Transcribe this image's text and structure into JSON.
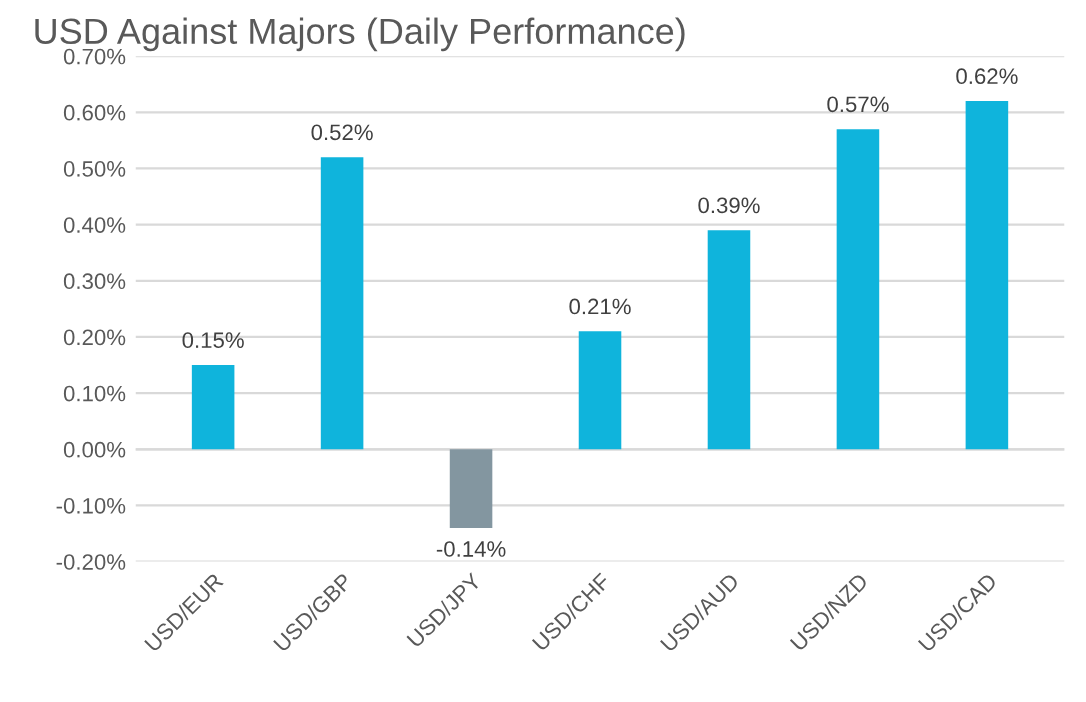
{
  "chart_data": {
    "type": "bar",
    "title": "USD Against Majors (Daily Performance)",
    "categories": [
      "USD/EUR",
      "USD/GBP",
      "USD/JPY",
      "USD/CHF",
      "USD/AUD",
      "USD/NZD",
      "USD/CAD"
    ],
    "values": [
      0.15,
      0.52,
      -0.14,
      0.21,
      0.39,
      0.57,
      0.62
    ],
    "colors": [
      "#0fb4dc",
      "#0fb4dc",
      "#8396a0",
      "#0fb4dc",
      "#0fb4dc",
      "#0fb4dc",
      "#0fb4dc"
    ],
    "value_labels": [
      "0.15%",
      "0.52%",
      "-0.14%",
      "0.21%",
      "0.39%",
      "0.57%",
      "0.62%"
    ],
    "ylim": [
      -0.2,
      0.7
    ],
    "yticks": [
      {
        "value": -0.2,
        "label": "-0.20%"
      },
      {
        "value": -0.1,
        "label": "-0.10%"
      },
      {
        "value": 0,
        "label": "0.00%"
      },
      {
        "value": 0.1,
        "label": "0.10%"
      },
      {
        "value": 0.2,
        "label": "0.20%"
      },
      {
        "value": 0.3,
        "label": "0.30%"
      },
      {
        "value": 0.4,
        "label": "0.40%"
      },
      {
        "value": 0.5,
        "label": "0.50%"
      },
      {
        "value": 0.6,
        "label": "0.60%"
      },
      {
        "value": 0.7,
        "label": "0.70%"
      }
    ],
    "grid": "y"
  }
}
